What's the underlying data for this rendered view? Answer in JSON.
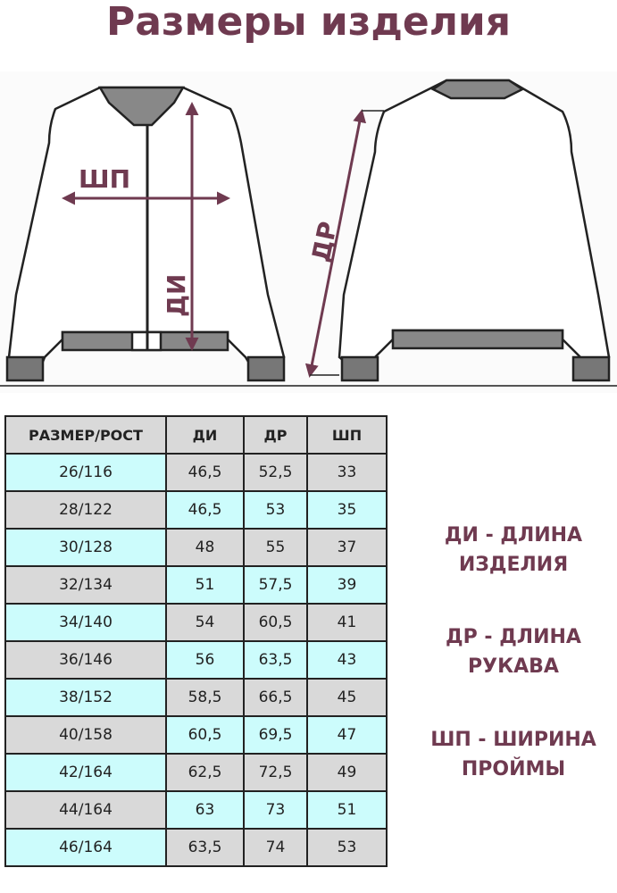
{
  "title": "Размеры изделия",
  "diagram_labels": {
    "shp": "ШП",
    "di": "ДИ",
    "dr": "ДР"
  },
  "colors": {
    "accent": "#6f3a50",
    "cyan": "#ccfcfc",
    "gray": "#d9d9d9"
  },
  "table": {
    "headers": [
      "РАЗМЕР/РОСТ",
      "ДИ",
      "ДР",
      "ШП"
    ],
    "rows": [
      [
        "26/116",
        "46,5",
        "52,5",
        "33"
      ],
      [
        "28/122",
        "46,5",
        "53",
        "35"
      ],
      [
        "30/128",
        "48",
        "55",
        "37"
      ],
      [
        "32/134",
        "51",
        "57,5",
        "39"
      ],
      [
        "34/140",
        "54",
        "60,5",
        "41"
      ],
      [
        "36/146",
        "56",
        "63,5",
        "43"
      ],
      [
        "38/152",
        "58,5",
        "66,5",
        "45"
      ],
      [
        "40/158",
        "60,5",
        "69,5",
        "47"
      ],
      [
        "42/164",
        "62,5",
        "72,5",
        "49"
      ],
      [
        "44/164",
        "63",
        "73",
        "51"
      ],
      [
        "46/164",
        "63,5",
        "74",
        "53"
      ]
    ]
  },
  "legend": [
    {
      "line1": "ДИ - ДЛИНА",
      "line2": "ИЗДЕЛИЯ"
    },
    {
      "line1": "ДР - ДЛИНА",
      "line2": "РУКАВА"
    },
    {
      "line1": "ШП - ШИРИНА",
      "line2": "ПРОЙМЫ"
    }
  ]
}
